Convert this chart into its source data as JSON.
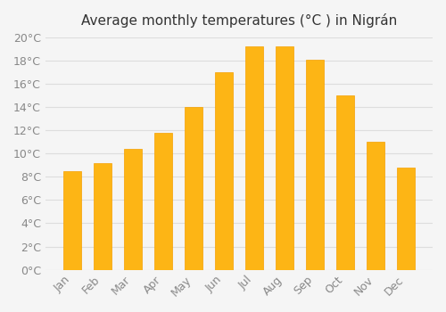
{
  "title": "Average monthly temperatures (°C ) in Nigrán",
  "months": [
    "Jan",
    "Feb",
    "Mar",
    "Apr",
    "May",
    "Jun",
    "Jul",
    "Aug",
    "Sep",
    "Oct",
    "Nov",
    "Dec"
  ],
  "values": [
    8.5,
    9.2,
    10.4,
    11.8,
    14.0,
    17.0,
    19.2,
    19.2,
    18.1,
    15.0,
    11.0,
    8.8
  ],
  "bar_color": "#FDB515",
  "bar_edge_color": "#F5A000",
  "background_color": "#F5F5F5",
  "grid_color": "#DDDDDD",
  "text_color": "#888888",
  "ylim": [
    0,
    20
  ],
  "yticks": [
    0,
    2,
    4,
    6,
    8,
    10,
    12,
    14,
    16,
    18,
    20
  ],
  "title_fontsize": 11,
  "tick_fontsize": 9
}
